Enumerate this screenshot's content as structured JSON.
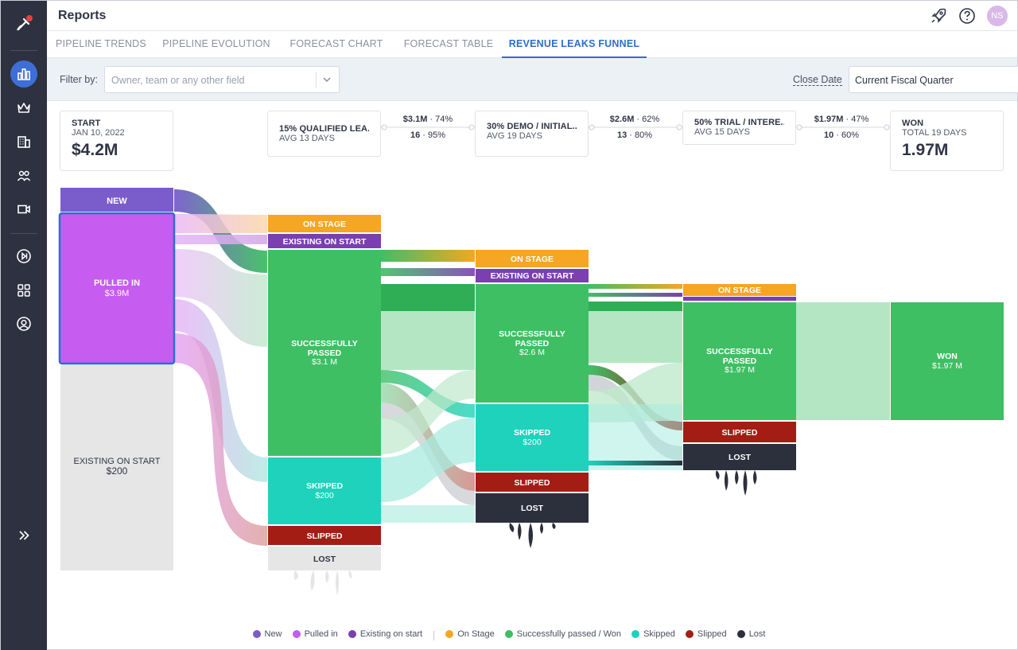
{
  "app": {
    "title": "Reports",
    "user_initials": "NS"
  },
  "colors": {
    "new": "#7a5ccb",
    "pulled_in": "#c65cf0",
    "existing": "#7b3fb1",
    "on_stage": "#f5a623",
    "passed": "#3fbf64",
    "skipped": "#1ed2bc",
    "slipped": "#a31d15",
    "lost": "#2c2f3c",
    "existing_gray": "#e6e6e6",
    "accent": "#2d6ecb"
  },
  "tabs": [
    {
      "label": "PIPELINE TRENDS"
    },
    {
      "label": "PIPELINE EVOLUTION"
    },
    {
      "label": "FORECAST CHART"
    },
    {
      "label": "FORECAST TABLE"
    },
    {
      "label": "REVENUE LEAKS FUNNEL",
      "active": true
    }
  ],
  "filter": {
    "label": "Filter by:",
    "placeholder": "Owner, team or any other field",
    "close_date_label": "Close Date",
    "close_date_value": "Current Fiscal Quarter"
  },
  "stages": {
    "start": {
      "title": "START",
      "date": "JAN 10, 2022",
      "amount": "$4.2M"
    },
    "s1": {
      "title": "15% QUALIFIED LEA...",
      "avg": "AVG 13 DAYS"
    },
    "s2": {
      "title": "30% DEMO / INITIAL...",
      "avg": "AVG 19 DAYS"
    },
    "s3": {
      "title": "50% TRIAL / INTERE...",
      "avg": "AVG 15 DAYS"
    },
    "won": {
      "title": "WON",
      "total": "TOTAL 19 DAYS",
      "amount": "1.97M"
    }
  },
  "connectors": [
    {
      "amount": "$3.1M",
      "pct": "74%",
      "count": "16",
      "count_pct": "95%"
    },
    {
      "amount": "$2.6M",
      "pct": "62%",
      "count": "13",
      "count_pct": "80%"
    },
    {
      "amount": "$1.97M",
      "pct": "47%",
      "count": "10",
      "count_pct": "60%"
    }
  ],
  "nodes": {
    "new": "NEW",
    "pulled_in": {
      "label": "PULLED IN",
      "value": "$3.9M"
    },
    "existing_start": {
      "label": "EXISTING ON START",
      "value": "$200"
    },
    "c1": {
      "on_stage": "ON STAGE",
      "existing": "EXISTING ON START",
      "passed_1": "SUCCESSFULLY",
      "passed_2": "PASSED",
      "passed_value": "$3.1 M",
      "skipped": "SKIPPED",
      "skipped_value": "$200",
      "slipped": "SLIPPED",
      "lost": "LOST"
    },
    "c2": {
      "on_stage": "ON STAGE",
      "existing": "EXISTING ON START",
      "passed_1": "SUCCESSFULLY",
      "passed_2": "PASSED",
      "passed_value": "$2.6 M",
      "skipped": "SKIPPED",
      "skipped_value": "$200",
      "slipped": "SLIPPED",
      "lost": "LOST"
    },
    "c3": {
      "on_stage": "ON STAGE",
      "passed_1": "SUCCESSFULLY",
      "passed_2": "PASSED",
      "passed_value": "$1.97 M",
      "slipped": "SLIPPED",
      "lost": "LOST"
    },
    "won": {
      "label": "WON",
      "value": "$1.97 M"
    }
  },
  "legend": [
    {
      "label": "New",
      "color": "#7a5ccb"
    },
    {
      "label": "Pulled in",
      "color": "#c65cf0"
    },
    {
      "label": "Existing on start",
      "color": "#7b3fb1"
    },
    {
      "label": "On Stage",
      "color": "#f5a623"
    },
    {
      "label": "Successfully passed / Won",
      "color": "#3fbf64"
    },
    {
      "label": "Skipped",
      "color": "#1ed2bc"
    },
    {
      "label": "Slipped",
      "color": "#a31d15"
    },
    {
      "label": "Lost",
      "color": "#2c2f3c"
    }
  ]
}
